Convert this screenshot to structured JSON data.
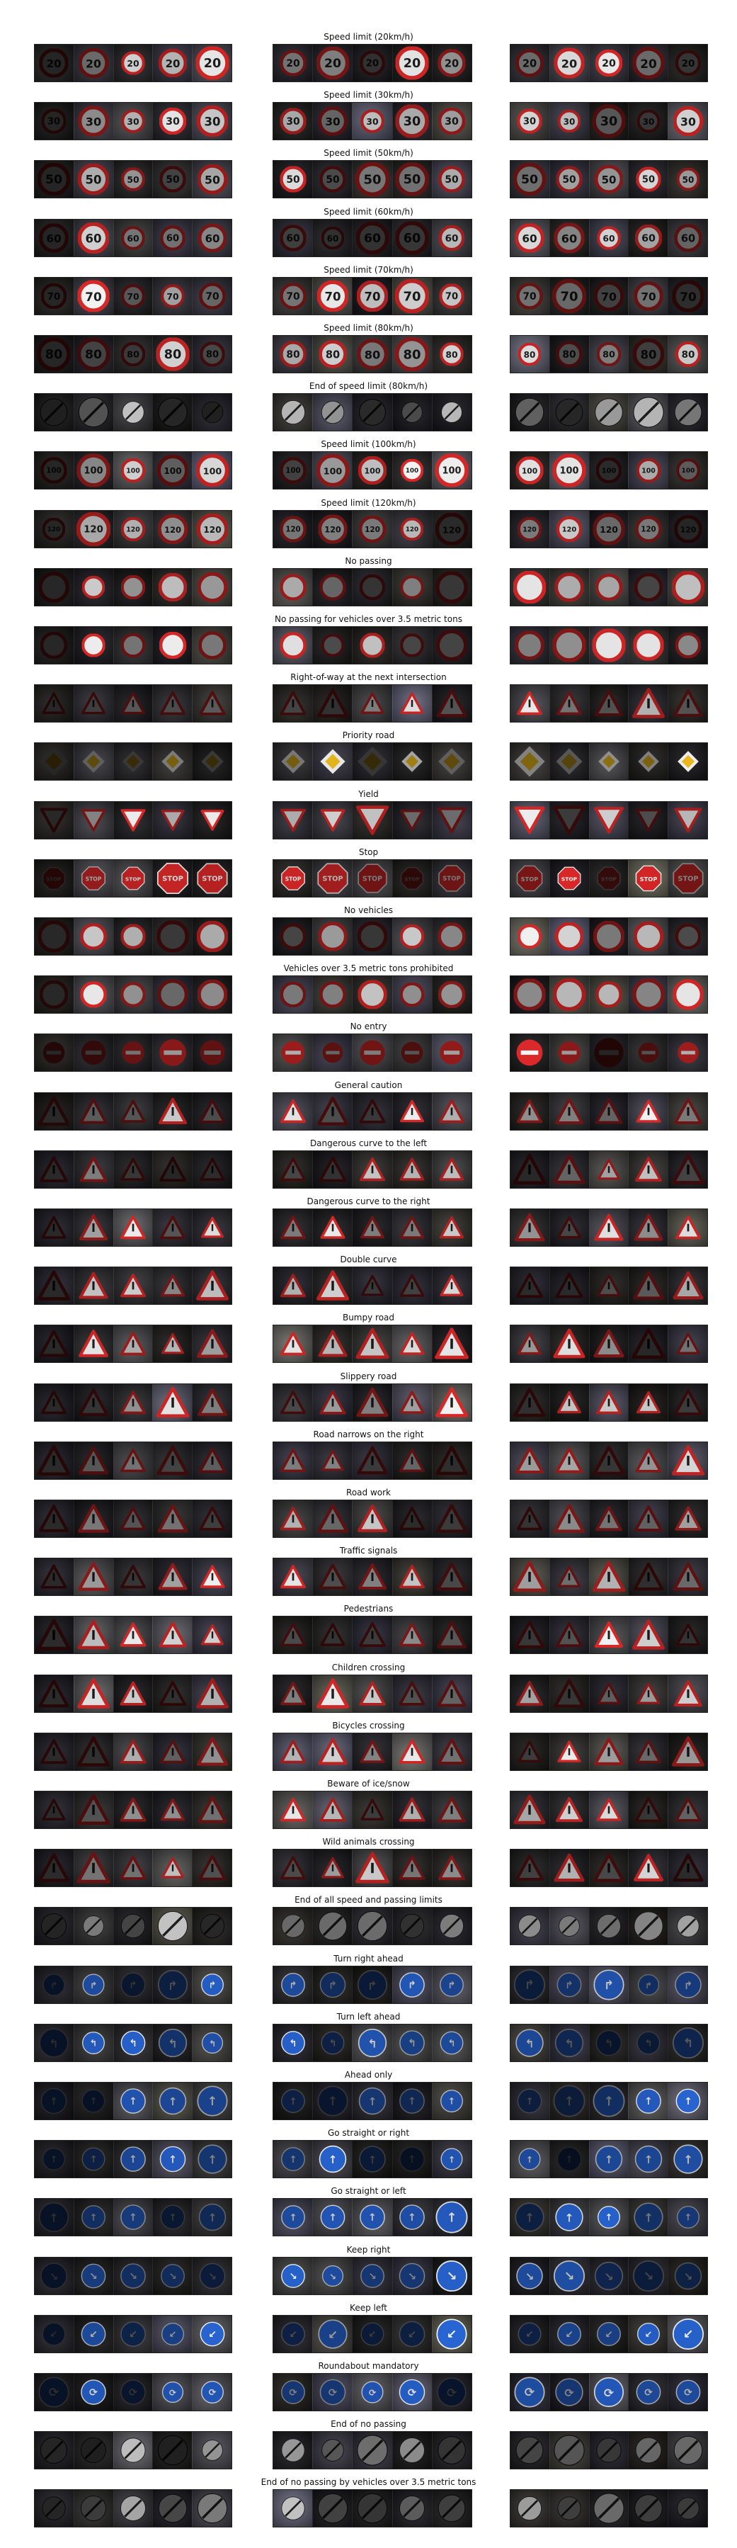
{
  "classes": [
    {
      "title": "Speed limit (20km/h)",
      "shape": "circle-red",
      "glyph": "20"
    },
    {
      "title": "Speed limit (30km/h)",
      "shape": "circle-red",
      "glyph": "30"
    },
    {
      "title": "Speed limit (50km/h)",
      "shape": "circle-red",
      "glyph": "50"
    },
    {
      "title": "Speed limit (60km/h)",
      "shape": "circle-red",
      "glyph": "60"
    },
    {
      "title": "Speed limit (70km/h)",
      "shape": "circle-red",
      "glyph": "70"
    },
    {
      "title": "Speed limit (80km/h)",
      "shape": "circle-red",
      "glyph": "80"
    },
    {
      "title": "End of speed limit (80km/h)",
      "shape": "circle-grey",
      "glyph": ""
    },
    {
      "title": "Speed limit (100km/h)",
      "shape": "circle-red",
      "glyph": "100"
    },
    {
      "title": "Speed limit (120km/h)",
      "shape": "circle-red",
      "glyph": "120"
    },
    {
      "title": "No passing",
      "shape": "circle-red",
      "glyph": ""
    },
    {
      "title": "No passing for vehicles over 3.5 metric tons",
      "shape": "circle-red",
      "glyph": ""
    },
    {
      "title": "Right-of-way at the next intersection",
      "shape": "triangle",
      "glyph": ""
    },
    {
      "title": "Priority road",
      "shape": "diamond",
      "glyph": ""
    },
    {
      "title": "Yield",
      "shape": "triangle-down",
      "glyph": ""
    },
    {
      "title": "Stop",
      "shape": "octagon",
      "glyph": "STOP"
    },
    {
      "title": "No vehicles",
      "shape": "circle-red",
      "glyph": ""
    },
    {
      "title": "Vehicles over 3.5 metric tons prohibited",
      "shape": "circle-red",
      "glyph": ""
    },
    {
      "title": "No entry",
      "shape": "circle-solid-red",
      "glyph": ""
    },
    {
      "title": "General caution",
      "shape": "triangle",
      "glyph": ""
    },
    {
      "title": "Dangerous curve to the left",
      "shape": "triangle",
      "glyph": ""
    },
    {
      "title": "Dangerous curve to the right",
      "shape": "triangle",
      "glyph": ""
    },
    {
      "title": "Double curve",
      "shape": "triangle",
      "glyph": ""
    },
    {
      "title": "Bumpy road",
      "shape": "triangle",
      "glyph": ""
    },
    {
      "title": "Slippery road",
      "shape": "triangle",
      "glyph": ""
    },
    {
      "title": "Road narrows on the right",
      "shape": "triangle",
      "glyph": ""
    },
    {
      "title": "Road work",
      "shape": "triangle",
      "glyph": ""
    },
    {
      "title": "Traffic signals",
      "shape": "triangle",
      "glyph": ""
    },
    {
      "title": "Pedestrians",
      "shape": "triangle",
      "glyph": ""
    },
    {
      "title": "Children crossing",
      "shape": "triangle",
      "glyph": ""
    },
    {
      "title": "Bicycles crossing",
      "shape": "triangle",
      "glyph": ""
    },
    {
      "title": "Beware of ice/snow",
      "shape": "triangle",
      "glyph": ""
    },
    {
      "title": "Wild animals crossing",
      "shape": "triangle",
      "glyph": ""
    },
    {
      "title": "End of all speed and passing limits",
      "shape": "circle-grey",
      "glyph": ""
    },
    {
      "title": "Turn right ahead",
      "shape": "circle-blue",
      "glyph": "↱"
    },
    {
      "title": "Turn left ahead",
      "shape": "circle-blue",
      "glyph": "↰"
    },
    {
      "title": "Ahead only",
      "shape": "circle-blue",
      "glyph": "↑"
    },
    {
      "title": "Go straight or right",
      "shape": "circle-blue",
      "glyph": "↑"
    },
    {
      "title": "Go straight or left",
      "shape": "circle-blue",
      "glyph": "↑"
    },
    {
      "title": "Keep right",
      "shape": "circle-blue",
      "glyph": "↘"
    },
    {
      "title": "Keep left",
      "shape": "circle-blue",
      "glyph": "↙"
    },
    {
      "title": "Roundabout mandatory",
      "shape": "circle-blue",
      "glyph": "⟳"
    },
    {
      "title": "End of no passing",
      "shape": "circle-grey",
      "glyph": ""
    },
    {
      "title": "End of no passing by vehicles over 3.5 metric tons",
      "shape": "circle-grey",
      "glyph": ""
    }
  ]
}
